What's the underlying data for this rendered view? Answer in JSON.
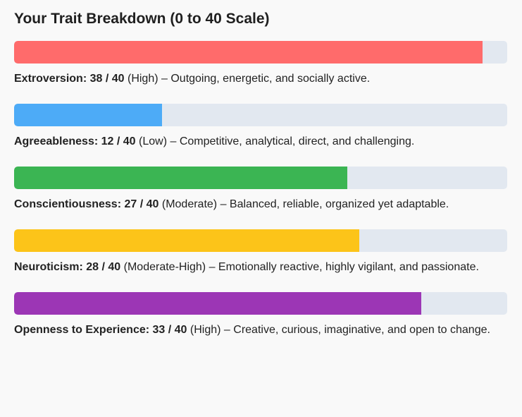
{
  "title": "Your Trait Breakdown (0 to 40 Scale)",
  "max": 40,
  "traits": [
    {
      "name": "Extroversion:",
      "score": "38 / 40",
      "value": 38,
      "level": "(High)",
      "text": "– Outgoing, energetic, and socially active.",
      "color": "#ff6b6b"
    },
    {
      "name": "Agreeableness:",
      "score": "12 / 40",
      "value": 12,
      "level": "(Low)",
      "text": "– Competitive, analytical, direct, and challenging.",
      "color": "#4dabf7"
    },
    {
      "name": "Conscientiousness:",
      "score": "27 / 40",
      "value": 27,
      "level": "(Moderate)",
      "text": "– Balanced, reliable, organized yet adaptable.",
      "color": "#3bb553"
    },
    {
      "name": "Neuroticism:",
      "score": "28 / 40",
      "value": 28,
      "level": "(Moderate-High)",
      "text": "– Emotionally reactive, highly vigilant, and passionate.",
      "color": "#fcc419"
    },
    {
      "name": "Openness to Experience:",
      "score": "33 / 40",
      "value": 33,
      "level": "(High)",
      "text": "– Creative, curious, imaginative, and open to change.",
      "color": "#9c36b5"
    }
  ]
}
